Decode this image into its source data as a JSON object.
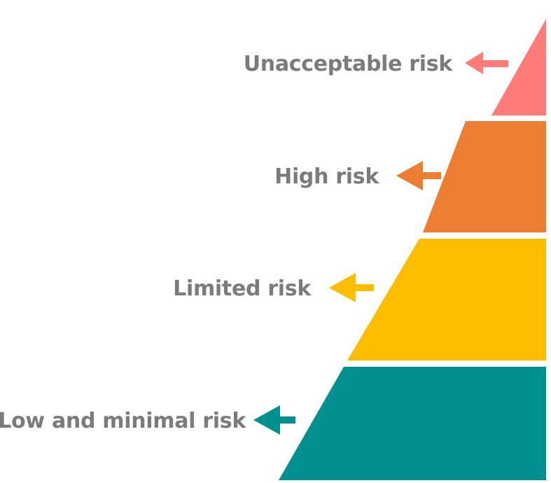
{
  "diagram": {
    "tiers": [
      {
        "label": "Unacceptable risk",
        "color": "#ff7c78"
      },
      {
        "label": "High risk",
        "color": "#ed7d31"
      },
      {
        "label": "Limited risk",
        "color": "#fdbe00"
      },
      {
        "label": "Low and minimal risk",
        "color": "#009090"
      }
    ],
    "label_color": "#7b7b7b"
  }
}
